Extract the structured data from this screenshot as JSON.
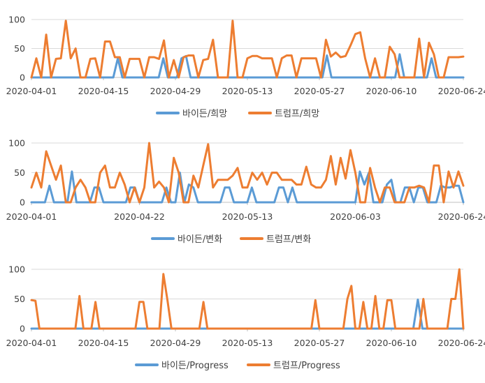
{
  "colors": {
    "biden": "#5B9BD5",
    "trump": "#ED7D31"
  },
  "chart_data": [
    {
      "type": "line",
      "x_ticks": [
        "2020-04-01",
        "2020-04-15",
        "2020-04-29",
        "2020-05-13",
        "2020-05-27",
        "2020-06-10",
        "2020-06-24"
      ],
      "ylim": [
        0,
        100
      ],
      "y_ticks": [
        0,
        50,
        100
      ],
      "grid": true,
      "legend_position": "bottom",
      "series": [
        {
          "name": "바이든/희망",
          "color": "#5B9BD5",
          "values": [
            0,
            0,
            0,
            0,
            0,
            0,
            0,
            0,
            0,
            0,
            0,
            0,
            0,
            0,
            0,
            0,
            0,
            0,
            0,
            33,
            0,
            0,
            0,
            0,
            0,
            0,
            0,
            0,
            0,
            33,
            0,
            0,
            0,
            33,
            37,
            0,
            0,
            0,
            0,
            0,
            0,
            0,
            0,
            0,
            0,
            0,
            0,
            0,
            0,
            0,
            0,
            0,
            0,
            0,
            0,
            0,
            0,
            0,
            0,
            0,
            0,
            0,
            0,
            0,
            0,
            38,
            0,
            0,
            0,
            0,
            0,
            0,
            0,
            0,
            0,
            0,
            0,
            0,
            0,
            0,
            0,
            40,
            0,
            0,
            0,
            0,
            0,
            0,
            33,
            0,
            0,
            0,
            0,
            0,
            0,
            0
          ]
        },
        {
          "name": "트럼프/희망",
          "color": "#ED7D31",
          "values": [
            0,
            33,
            0,
            74,
            0,
            32,
            33,
            98,
            33,
            50,
            0,
            0,
            32,
            33,
            0,
            62,
            62,
            35,
            35,
            0,
            32,
            32,
            32,
            0,
            35,
            35,
            32,
            64,
            0,
            30,
            0,
            35,
            38,
            38,
            0,
            30,
            32,
            65,
            0,
            0,
            0,
            98,
            0,
            0,
            33,
            37,
            37,
            33,
            33,
            33,
            0,
            33,
            38,
            38,
            0,
            33,
            33,
            33,
            33,
            0,
            65,
            36,
            43,
            35,
            37,
            55,
            75,
            78,
            33,
            0,
            33,
            0,
            0,
            53,
            40,
            0,
            0,
            0,
            0,
            67,
            0,
            60,
            40,
            0,
            0,
            35,
            35,
            35,
            36
          ]
        }
      ]
    },
    {
      "type": "line",
      "x_ticks": [
        "2020-04-01",
        "2020-04-22",
        "2020-05-13",
        "2020-06-03",
        "2020-06-24"
      ],
      "ylim": [
        0,
        100
      ],
      "y_ticks": [
        0,
        50,
        100
      ],
      "grid": true,
      "legend_position": "bottom",
      "series": [
        {
          "name": "바이든/변화",
          "color": "#5B9BD5",
          "values": [
            0,
            0,
            0,
            0,
            28,
            0,
            0,
            0,
            0,
            52,
            0,
            0,
            0,
            0,
            25,
            25,
            0,
            0,
            0,
            0,
            0,
            0,
            25,
            25,
            0,
            0,
            0,
            0,
            0,
            0,
            25,
            0,
            0,
            50,
            0,
            30,
            25,
            0,
            0,
            0,
            0,
            0,
            0,
            25,
            25,
            0,
            0,
            0,
            0,
            25,
            0,
            0,
            0,
            0,
            0,
            25,
            25,
            0,
            25,
            0,
            0,
            0,
            0,
            0,
            0,
            0,
            0,
            0,
            0,
            0,
            0,
            0,
            0,
            52,
            30,
            50,
            0,
            0,
            0,
            30,
            38,
            0,
            0,
            25,
            25,
            0,
            25,
            25,
            0,
            0,
            0,
            28,
            25,
            25,
            28,
            28,
            0
          ]
        },
        {
          "name": "트럼프/변화",
          "color": "#ED7D31",
          "values": [
            25,
            50,
            25,
            86,
            62,
            38,
            62,
            0,
            0,
            25,
            38,
            25,
            0,
            0,
            50,
            62,
            25,
            25,
            50,
            30,
            0,
            25,
            0,
            25,
            100,
            25,
            35,
            25,
            0,
            75,
            50,
            0,
            0,
            45,
            25,
            62,
            98,
            25,
            38,
            38,
            38,
            45,
            58,
            25,
            25,
            50,
            38,
            50,
            30,
            50,
            50,
            38,
            38,
            38,
            30,
            30,
            60,
            30,
            25,
            25,
            38,
            78,
            30,
            75,
            40,
            88,
            50,
            0,
            0,
            58,
            25,
            0,
            25,
            25,
            0,
            0,
            0,
            25,
            25,
            28,
            25,
            0,
            62,
            62,
            0,
            52,
            25,
            52,
            28
          ]
        }
      ]
    },
    {
      "type": "line",
      "x_ticks": [
        "2020-04-01",
        "2020-04-15",
        "2020-04-29",
        "2020-05-13",
        "2020-05-27",
        "2020-06-10",
        "2020-06-24"
      ],
      "ylim": [
        0,
        100
      ],
      "y_ticks": [
        0,
        50,
        100
      ],
      "grid": true,
      "legend_position": "bottom",
      "series": [
        {
          "name": "바이든/Progress",
          "color": "#5B9BD5",
          "values": [
            0,
            0,
            0,
            0,
            0,
            0,
            0,
            0,
            0,
            0,
            0,
            0,
            0,
            0,
            0,
            0,
            0,
            0,
            0,
            0,
            0,
            0,
            0,
            0,
            0,
            0,
            0,
            0,
            0,
            0,
            0,
            0,
            0,
            0,
            0,
            0,
            0,
            0,
            0,
            0,
            0,
            0,
            0,
            0,
            0,
            0,
            0,
            0,
            0,
            0,
            0,
            0,
            0,
            0,
            0,
            0,
            0,
            0,
            0,
            0,
            0,
            0,
            0,
            0,
            0,
            0,
            0,
            0,
            0,
            0,
            0,
            0,
            0,
            0,
            0,
            0,
            0,
            0,
            0,
            0,
            0,
            0,
            0,
            0,
            0,
            49,
            0,
            0,
            0,
            0,
            0,
            0,
            0,
            0,
            0,
            0
          ]
        },
        {
          "name": "트럼프/Progress",
          "color": "#ED7D31",
          "values": [
            48,
            47,
            0,
            0,
            0,
            0,
            0,
            0,
            0,
            0,
            0,
            0,
            55,
            0,
            0,
            0,
            45,
            0,
            0,
            0,
            0,
            0,
            0,
            0,
            0,
            0,
            0,
            45,
            45,
            0,
            0,
            0,
            0,
            92,
            48,
            0,
            0,
            0,
            0,
            0,
            0,
            0,
            0,
            45,
            0,
            0,
            0,
            0,
            0,
            0,
            0,
            0,
            0,
            0,
            0,
            0,
            0,
            0,
            0,
            0,
            0,
            0,
            0,
            0,
            0,
            0,
            0,
            0,
            0,
            0,
            0,
            48,
            0,
            0,
            0,
            0,
            0,
            0,
            0,
            50,
            72,
            0,
            0,
            45,
            0,
            0,
            55,
            0,
            0,
            48,
            48,
            0,
            0,
            0,
            0,
            0,
            0,
            0,
            50,
            0,
            0,
            0,
            0,
            0,
            0,
            50,
            50,
            100,
            0
          ]
        }
      ]
    }
  ]
}
